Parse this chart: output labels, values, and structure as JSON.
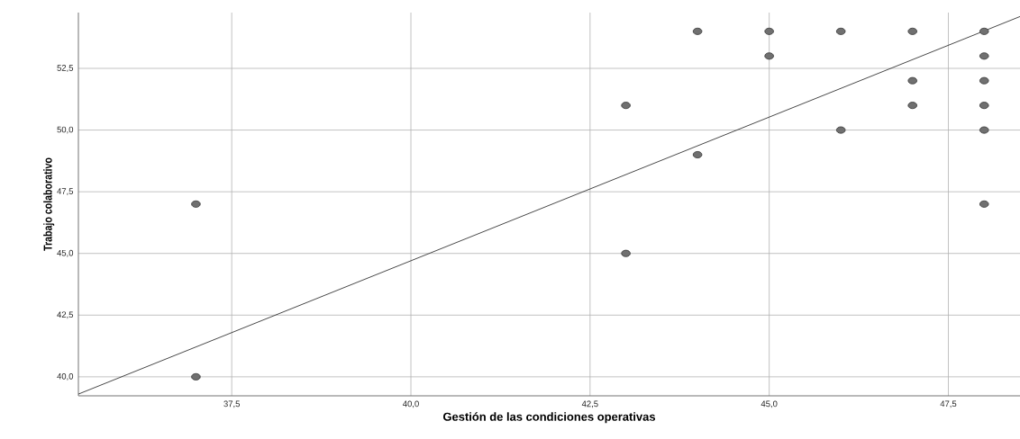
{
  "chart_data": {
    "type": "scatter",
    "xlabel": "Gestión de las condiciones operativas",
    "ylabel": "Trabajo colaborativo",
    "xlim": [
      35.36,
      48.5
    ],
    "ylim": [
      39.23,
      54.76
    ],
    "xticks": [
      {
        "value": 37.5,
        "label": "37,5"
      },
      {
        "value": 40,
        "label": "40,0"
      },
      {
        "value": 42.5,
        "label": "42,5"
      },
      {
        "value": 45,
        "label": "45,0"
      },
      {
        "value": 47.5,
        "label": "47,5"
      }
    ],
    "yticks": [
      {
        "value": 40,
        "label": "40,0"
      },
      {
        "value": 42.5,
        "label": "42,5"
      },
      {
        "value": 45,
        "label": "45,0"
      },
      {
        "value": 47.5,
        "label": "47,5"
      },
      {
        "value": 50,
        "label": "50,0"
      },
      {
        "value": 52.5,
        "label": "52,5"
      }
    ],
    "grid": true,
    "series": [
      {
        "marker": "circle",
        "color": "#707070",
        "x": [
          37,
          37,
          43,
          43,
          44,
          44,
          45,
          45,
          46,
          46,
          47,
          47,
          47,
          48,
          48,
          48,
          48,
          48,
          48
        ],
        "values": [
          47,
          40,
          51,
          45,
          54,
          49,
          54,
          53,
          54,
          50,
          54,
          52,
          51,
          54,
          53,
          52,
          51,
          50,
          47
        ]
      },
      {
        "type": "line",
        "marker": "none",
        "color": "#333333",
        "x": [
          35.36,
          48.5
        ],
        "values": [
          39.3,
          54.6
        ]
      }
    ]
  }
}
